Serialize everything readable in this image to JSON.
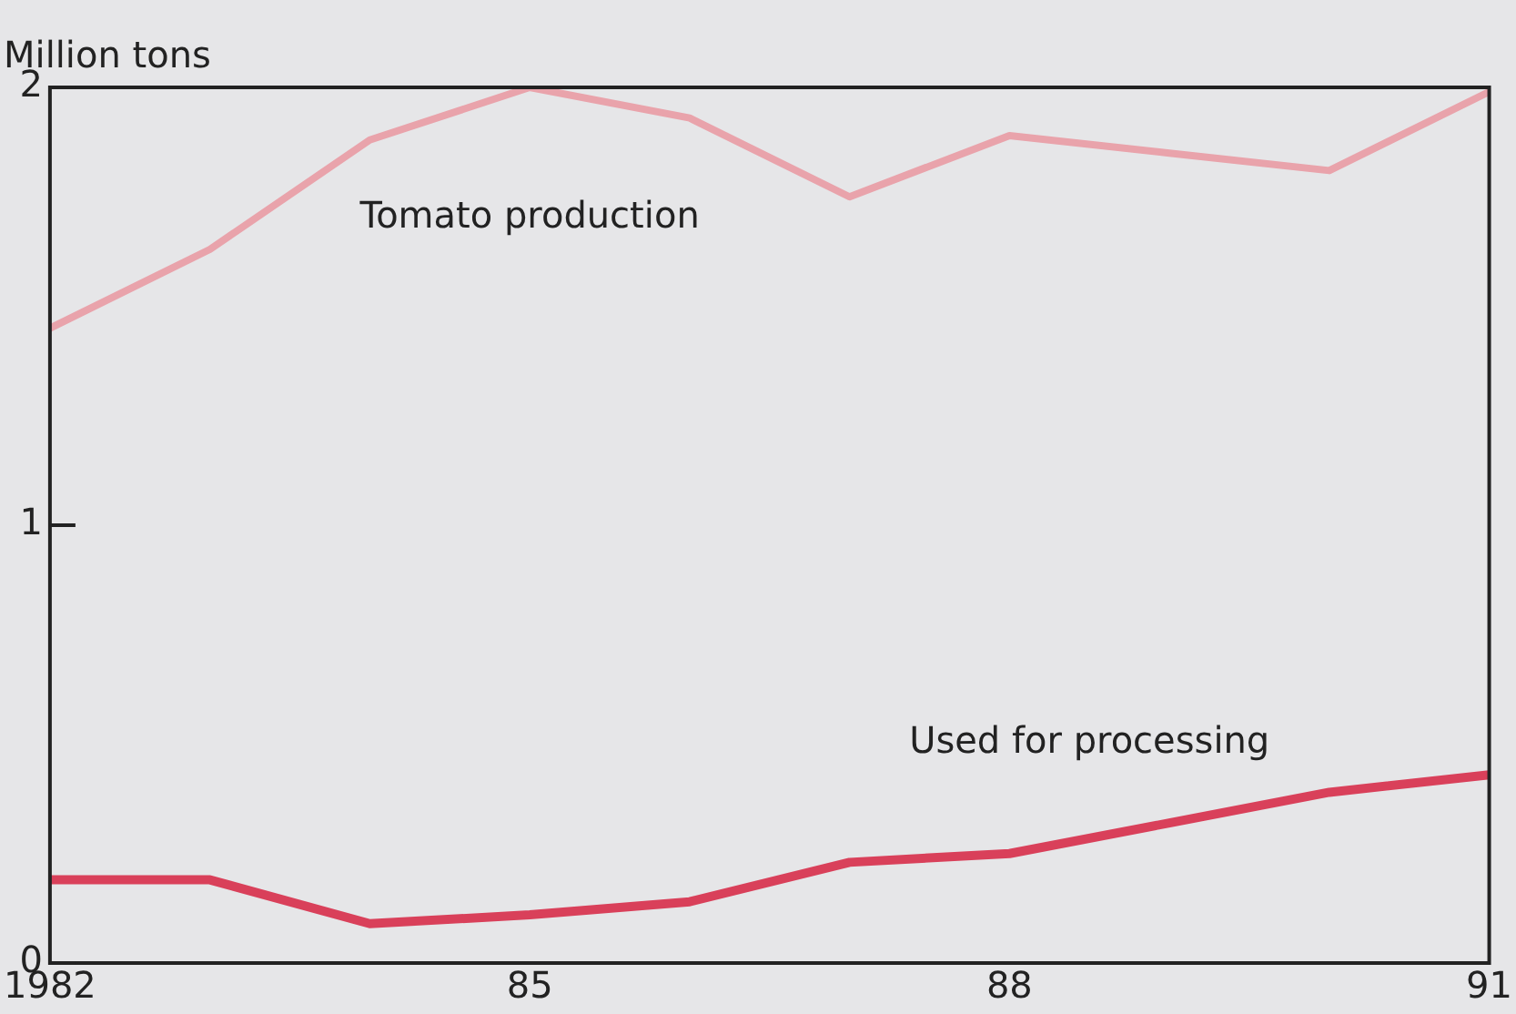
{
  "chart_data": {
    "type": "line",
    "ylabel": "Million tons",
    "x": [
      1982,
      1983,
      1984,
      1985,
      1986,
      1987,
      1988,
      1989,
      1990,
      1991
    ],
    "series": [
      {
        "name": "Tomato production",
        "color": "#e9a3ab",
        "values": [
          1.45,
          1.63,
          1.88,
          2.0,
          1.93,
          1.75,
          1.89,
          1.85,
          1.81,
          1.99
        ]
      },
      {
        "name": "Used for processing",
        "color": "#d9405a",
        "values": [
          0.19,
          0.19,
          0.09,
          0.11,
          0.14,
          0.23,
          0.25,
          0.32,
          0.39,
          0.43
        ]
      }
    ],
    "xlim": [
      1982,
      1991
    ],
    "xticks": [
      1982,
      {
        "value": 1985,
        "label": "85"
      },
      {
        "value": 1988,
        "label": "88"
      },
      {
        "value": 1991,
        "label": "91"
      }
    ],
    "ylim": [
      0,
      2
    ],
    "yticks": [
      0,
      1,
      2
    ],
    "grid": false,
    "legend": false,
    "marker": "none",
    "line_style": "solid"
  }
}
